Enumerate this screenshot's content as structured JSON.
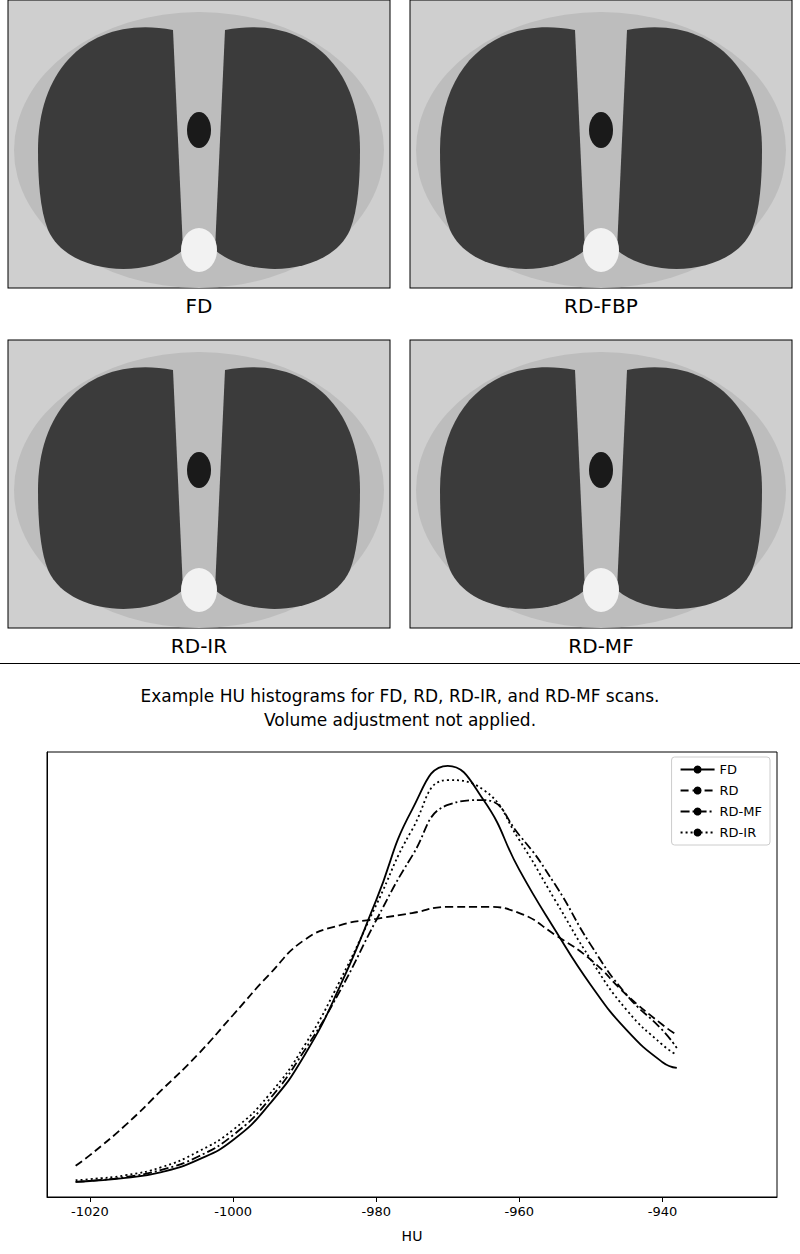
{
  "images": {
    "labels": [
      "FD",
      "RD-FBP",
      "RD-IR",
      "RD-MF"
    ]
  },
  "chart_data": {
    "type": "line",
    "title": "Example HU histograms for FD, RD, RD-IR, and RD-MF scans.\nVolume adjustment not applied.",
    "x_label": "HU",
    "x": [
      -1022,
      -1020,
      -1015,
      -1010,
      -1005,
      -1000,
      -995,
      -990,
      -985,
      -980,
      -975,
      -970,
      -965,
      -960,
      -955,
      -950,
      -945,
      -940,
      -938
    ],
    "series": [
      {
        "name": "FD",
        "color": "#000000",
        "line_style": "solid",
        "values": [
          0.034,
          0.036,
          0.043,
          0.056,
          0.083,
          0.128,
          0.207,
          0.319,
          0.476,
          0.667,
          0.87,
          0.969,
          0.892,
          0.735,
          0.6,
          0.476,
          0.375,
          0.303,
          0.29
        ]
      },
      {
        "name": "RD",
        "color": "#000000",
        "line_style": "dashed",
        "values": [
          0.07,
          0.094,
          0.162,
          0.24,
          0.319,
          0.409,
          0.499,
          0.578,
          0.611,
          0.625,
          0.638,
          0.652,
          0.652,
          0.638,
          0.589,
          0.533,
          0.454,
          0.387,
          0.364
        ]
      },
      {
        "name": "RD-MF",
        "color": "#000000",
        "line_style": "dashdot",
        "values": [
          0.034,
          0.036,
          0.045,
          0.061,
          0.09,
          0.139,
          0.218,
          0.33,
          0.465,
          0.622,
          0.766,
          0.881,
          0.892,
          0.813,
          0.702,
          0.566,
          0.454,
          0.375,
          0.335
        ]
      },
      {
        "name": "RD-IR",
        "color": "#000000",
        "line_style": "dotted",
        "values": [
          0.038,
          0.04,
          0.049,
          0.067,
          0.101,
          0.151,
          0.229,
          0.341,
          0.488,
          0.656,
          0.825,
          0.937,
          0.915,
          0.802,
          0.667,
          0.533,
          0.42,
          0.342,
          0.319
        ]
      }
    ],
    "xlim": [
      -1026,
      -924
    ],
    "xticks": [
      -1020,
      -1000,
      -980,
      -960,
      -940
    ],
    "ylim": [
      0,
      1
    ],
    "tick_labels": "x",
    "grid": false,
    "legend": "upper right"
  }
}
